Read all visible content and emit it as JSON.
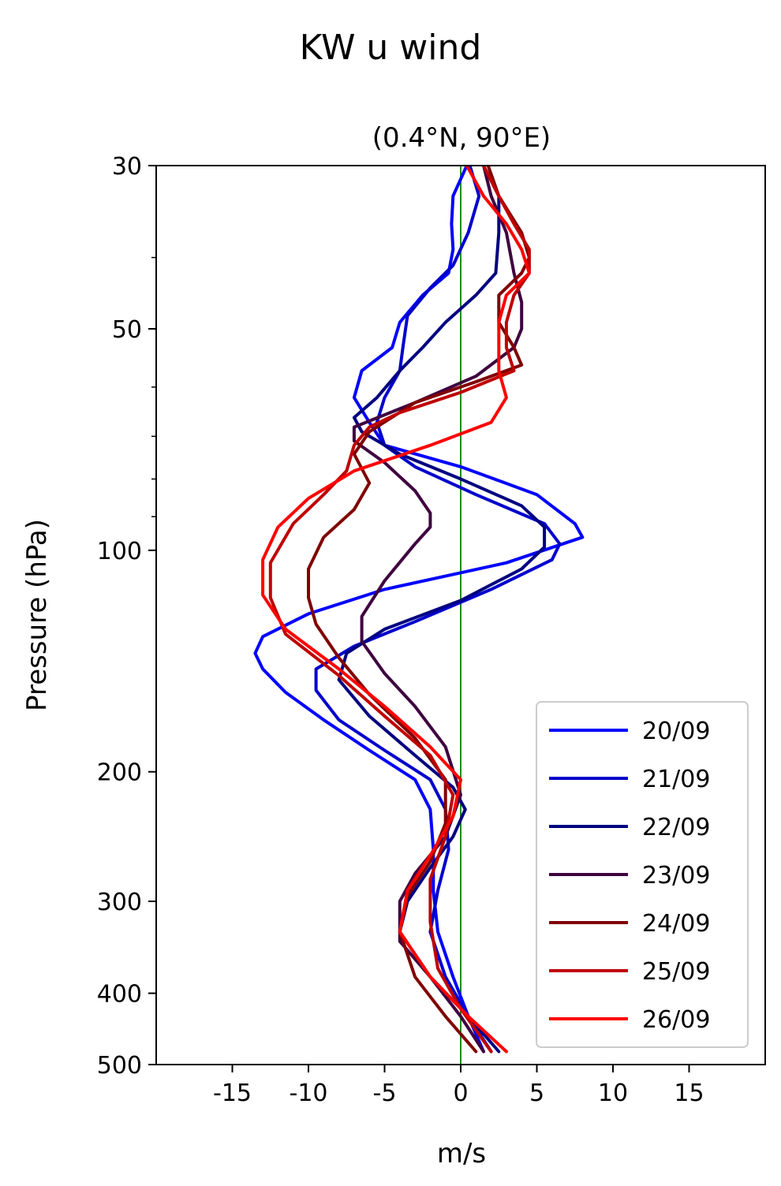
{
  "chart_data": {
    "type": "line",
    "suptitle": "KW u wind",
    "title": "(0.4°N, 90°E)",
    "xlabel": "m/s",
    "ylabel": "Pressure (hPa)",
    "xlim": [
      -20,
      20
    ],
    "ylim": [
      500,
      30
    ],
    "yscale": "log",
    "xticks": [
      -15,
      -10,
      -5,
      0,
      5,
      10,
      15
    ],
    "xtick_labels": [
      "-15",
      "-10",
      "-5",
      "0",
      "5",
      "10",
      "15"
    ],
    "yticks": [
      30,
      50,
      100,
      200,
      300,
      400,
      500
    ],
    "ytick_labels": [
      "30",
      "50",
      "100",
      "200",
      "300",
      "400",
      "500"
    ],
    "y_minor_ticks": [
      40,
      60,
      70,
      80,
      90
    ],
    "zero_line_color": "#008000",
    "legend_position": "lower right",
    "series": [
      {
        "name": "20/09",
        "color": "#0000ff",
        "points": [
          [
            0.4,
            30
          ],
          [
            -0.5,
            33
          ],
          [
            -0.6,
            36
          ],
          [
            -0.5,
            39
          ],
          [
            -0.8,
            42
          ],
          [
            -2.5,
            45
          ],
          [
            -4,
            49
          ],
          [
            -4.5,
            53
          ],
          [
            -6.5,
            57
          ],
          [
            -7,
            62
          ],
          [
            -6,
            67
          ],
          [
            -5,
            72
          ],
          [
            0,
            77
          ],
          [
            5,
            84
          ],
          [
            7.5,
            92
          ],
          [
            8,
            96
          ],
          [
            3,
            104
          ],
          [
            -5,
            113
          ],
          [
            -10,
            122
          ],
          [
            -13,
            131
          ],
          [
            -13.5,
            138
          ],
          [
            -13,
            145
          ],
          [
            -11.5,
            156
          ],
          [
            -9,
            170
          ],
          [
            -6,
            187
          ],
          [
            -3,
            205
          ],
          [
            -2,
            225
          ],
          [
            -1.8,
            255
          ],
          [
            -1.8,
            290
          ],
          [
            -1.5,
            330
          ],
          [
            -0.5,
            380
          ],
          [
            0.5,
            430
          ],
          [
            1.5,
            480
          ]
        ]
      },
      {
        "name": "21/09",
        "color": "#0000cc",
        "points": [
          [
            0.6,
            30
          ],
          [
            1.2,
            33
          ],
          [
            0.5,
            37
          ],
          [
            -0.5,
            41
          ],
          [
            -2,
            44
          ],
          [
            -3.5,
            48
          ],
          [
            -3.8,
            53
          ],
          [
            -4,
            57
          ],
          [
            -5,
            62
          ],
          [
            -5.5,
            67
          ],
          [
            -5,
            72
          ],
          [
            -3,
            77
          ],
          [
            1,
            84
          ],
          [
            5.5,
            92
          ],
          [
            6.5,
            98
          ],
          [
            6,
            103
          ],
          [
            2,
            113
          ],
          [
            -3,
            125
          ],
          [
            -7,
            135
          ],
          [
            -9.5,
            145
          ],
          [
            -9.5,
            155
          ],
          [
            -8,
            170
          ],
          [
            -5,
            187
          ],
          [
            -2,
            205
          ],
          [
            -1,
            225
          ],
          [
            -0.8,
            255
          ],
          [
            -1.5,
            290
          ],
          [
            -2,
            330
          ],
          [
            -1,
            380
          ],
          [
            0.5,
            430
          ],
          [
            2,
            480
          ]
        ]
      },
      {
        "name": "22/09",
        "color": "#000080",
        "points": [
          [
            1.5,
            30
          ],
          [
            2.5,
            33
          ],
          [
            2.5,
            37
          ],
          [
            2.3,
            42
          ],
          [
            1,
            45
          ],
          [
            -1,
            49
          ],
          [
            -2.5,
            53
          ],
          [
            -4,
            57
          ],
          [
            -5.5,
            62
          ],
          [
            -7,
            66
          ],
          [
            -6.5,
            69
          ],
          [
            -4,
            74
          ],
          [
            0,
            80
          ],
          [
            4,
            87
          ],
          [
            5.5,
            93
          ],
          [
            5.5,
            99
          ],
          [
            4,
            106
          ],
          [
            0,
            117
          ],
          [
            -5,
            128
          ],
          [
            -7.5,
            138
          ],
          [
            -8,
            150
          ],
          [
            -6,
            168
          ],
          [
            -3,
            190
          ],
          [
            -0.5,
            210
          ],
          [
            0.3,
            225
          ],
          [
            -0.5,
            245
          ],
          [
            -2,
            270
          ],
          [
            -3.5,
            300
          ],
          [
            -4,
            330
          ],
          [
            -2,
            380
          ],
          [
            0.5,
            430
          ],
          [
            2.5,
            480
          ]
        ]
      },
      {
        "name": "23/09",
        "color": "#3f0040",
        "points": [
          [
            1.5,
            30
          ],
          [
            2,
            33
          ],
          [
            3,
            37
          ],
          [
            3.5,
            42
          ],
          [
            4,
            46
          ],
          [
            4,
            50
          ],
          [
            3.5,
            53
          ],
          [
            1,
            58
          ],
          [
            -3,
            63
          ],
          [
            -7,
            68
          ],
          [
            -7,
            71
          ],
          [
            -5,
            76
          ],
          [
            -3,
            83
          ],
          [
            -2,
            89
          ],
          [
            -2,
            93
          ],
          [
            -3,
            98
          ],
          [
            -5,
            110
          ],
          [
            -6.5,
            123
          ],
          [
            -6.5,
            133
          ],
          [
            -5,
            147
          ],
          [
            -3,
            163
          ],
          [
            -1,
            185
          ],
          [
            0,
            215
          ],
          [
            -1,
            245
          ],
          [
            -3,
            275
          ],
          [
            -4,
            300
          ],
          [
            -4,
            340
          ],
          [
            -2,
            380
          ],
          [
            0,
            430
          ],
          [
            1.5,
            480
          ]
        ]
      },
      {
        "name": "24/09",
        "color": "#800000",
        "points": [
          [
            1.8,
            30
          ],
          [
            2.5,
            33
          ],
          [
            4,
            37
          ],
          [
            4.5,
            40
          ],
          [
            4,
            42
          ],
          [
            2.5,
            45
          ],
          [
            2.5,
            49
          ],
          [
            3.5,
            53
          ],
          [
            4,
            56
          ],
          [
            1,
            59
          ],
          [
            -3,
            63
          ],
          [
            -6,
            69
          ],
          [
            -7,
            74
          ],
          [
            -6,
            81
          ],
          [
            -7,
            88
          ],
          [
            -9,
            96
          ],
          [
            -10,
            106
          ],
          [
            -10,
            116
          ],
          [
            -9.5,
            126
          ],
          [
            -8,
            140
          ],
          [
            -6,
            157
          ],
          [
            -3,
            180
          ],
          [
            -1,
            205
          ],
          [
            -1,
            235
          ],
          [
            -2,
            265
          ],
          [
            -3.5,
            295
          ],
          [
            -4,
            330
          ],
          [
            -3,
            380
          ],
          [
            -1,
            430
          ],
          [
            1,
            480
          ]
        ]
      },
      {
        "name": "25/09",
        "color": "#bf0000",
        "points": [
          [
            1.5,
            30
          ],
          [
            2.5,
            33
          ],
          [
            3.5,
            36
          ],
          [
            4.5,
            39
          ],
          [
            4.5,
            42
          ],
          [
            3.5,
            45
          ],
          [
            3,
            49
          ],
          [
            3,
            53
          ],
          [
            3.5,
            57
          ],
          [
            0,
            61
          ],
          [
            -4,
            65
          ],
          [
            -6,
            68
          ],
          [
            -7,
            72
          ],
          [
            -7.5,
            78
          ],
          [
            -9,
            84
          ],
          [
            -11,
            92
          ],
          [
            -12.5,
            104
          ],
          [
            -12.5,
            116
          ],
          [
            -11.5,
            130
          ],
          [
            -8,
            148
          ],
          [
            -5,
            168
          ],
          [
            -2,
            190
          ],
          [
            -0.5,
            215
          ],
          [
            -1,
            245
          ],
          [
            -2,
            280
          ],
          [
            -2,
            320
          ],
          [
            -1.5,
            370
          ],
          [
            0,
            420
          ],
          [
            2,
            480
          ]
        ]
      },
      {
        "name": "26/09",
        "color": "#ff0000",
        "points": [
          [
            0.4,
            30
          ],
          [
            1.5,
            33
          ],
          [
            3,
            36
          ],
          [
            4,
            39
          ],
          [
            4.5,
            42
          ],
          [
            3,
            45
          ],
          [
            2.5,
            49
          ],
          [
            2.5,
            53
          ],
          [
            2.5,
            57
          ],
          [
            3,
            62
          ],
          [
            2,
            67
          ],
          [
            -2,
            72
          ],
          [
            -7,
            78
          ],
          [
            -10,
            85
          ],
          [
            -12,
            93
          ],
          [
            -13,
            103
          ],
          [
            -13,
            115
          ],
          [
            -11.5,
            128
          ],
          [
            -8,
            145
          ],
          [
            -5,
            163
          ],
          [
            -2,
            185
          ],
          [
            0,
            205
          ],
          [
            -0.5,
            230
          ],
          [
            -2,
            260
          ],
          [
            -3.5,
            290
          ],
          [
            -4,
            330
          ],
          [
            -2,
            380
          ],
          [
            0.5,
            430
          ],
          [
            3,
            480
          ]
        ]
      }
    ]
  }
}
